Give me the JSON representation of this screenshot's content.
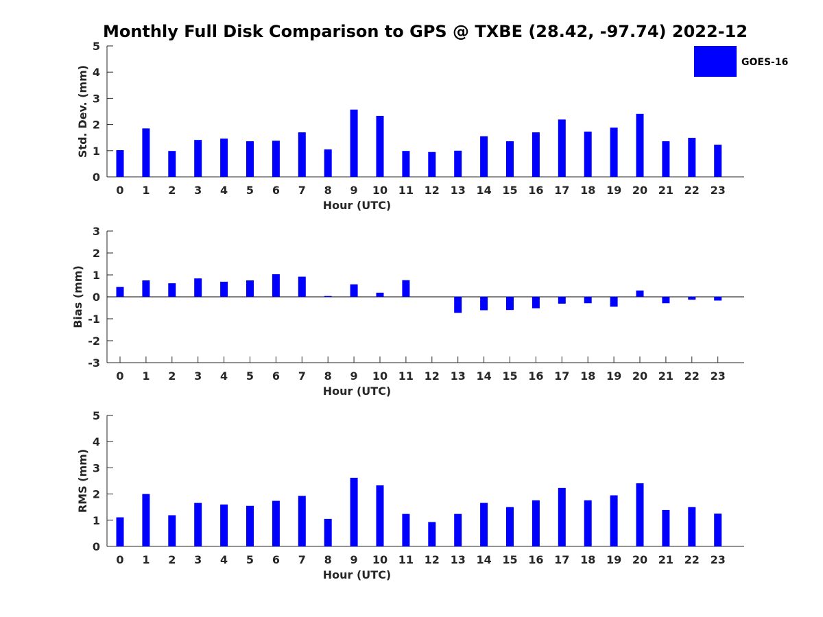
{
  "title": "Monthly Full Disk Comparison to GPS @ TXBE (28.42, -97.74) 2022-12",
  "legend": {
    "label": "GOES-16",
    "color": "#0000ff",
    "placement": "top-right"
  },
  "chart_data": [
    {
      "type": "bar",
      "name": "std",
      "xlabel": "Hour (UTC)",
      "ylabel": "Std. Dev. (mm)",
      "ylim": [
        0,
        5
      ],
      "yticks": [
        0,
        1,
        2,
        3,
        4,
        5
      ],
      "categories": [
        "0",
        "1",
        "2",
        "3",
        "4",
        "5",
        "6",
        "7",
        "8",
        "9",
        "10",
        "11",
        "12",
        "13",
        "14",
        "15",
        "16",
        "17",
        "18",
        "19",
        "20",
        "21",
        "22",
        "23"
      ],
      "series": [
        {
          "name": "GOES-16",
          "color": "#0000ff",
          "values": [
            1.02,
            1.85,
            0.99,
            1.41,
            1.46,
            1.36,
            1.38,
            1.7,
            1.05,
            2.57,
            2.33,
            0.99,
            0.95,
            1.0,
            1.55,
            1.36,
            1.7,
            2.19,
            1.73,
            1.88,
            2.41,
            1.36,
            1.49,
            1.23
          ]
        }
      ]
    },
    {
      "type": "bar",
      "name": "bias",
      "xlabel": "Hour (UTC)",
      "ylabel": "Bias (mm)",
      "ylim": [
        -3,
        3
      ],
      "yticks": [
        -3,
        -2,
        -1,
        0,
        1,
        2,
        3
      ],
      "categories": [
        "0",
        "1",
        "2",
        "3",
        "4",
        "5",
        "6",
        "7",
        "8",
        "9",
        "10",
        "11",
        "12",
        "13",
        "14",
        "15",
        "16",
        "17",
        "18",
        "19",
        "20",
        "21",
        "22",
        "23"
      ],
      "series": [
        {
          "name": "GOES-16",
          "color": "#0000ff",
          "values": [
            0.45,
            0.75,
            0.62,
            0.84,
            0.69,
            0.75,
            1.03,
            0.92,
            0.04,
            0.57,
            0.19,
            0.76,
            0.0,
            -0.73,
            -0.61,
            -0.6,
            -0.52,
            -0.31,
            -0.29,
            -0.45,
            0.29,
            -0.29,
            -0.13,
            -0.17
          ]
        }
      ]
    },
    {
      "type": "bar",
      "name": "rms",
      "xlabel": "Hour (UTC)",
      "ylabel": "RMS (mm)",
      "ylim": [
        0,
        5
      ],
      "yticks": [
        0,
        1,
        2,
        3,
        4,
        5
      ],
      "categories": [
        "0",
        "1",
        "2",
        "3",
        "4",
        "5",
        "6",
        "7",
        "8",
        "9",
        "10",
        "11",
        "12",
        "13",
        "14",
        "15",
        "16",
        "17",
        "18",
        "19",
        "20",
        "21",
        "22",
        "23"
      ],
      "series": [
        {
          "name": "GOES-16",
          "color": "#0000ff",
          "values": [
            1.11,
            2.0,
            1.19,
            1.66,
            1.6,
            1.55,
            1.74,
            1.93,
            1.05,
            2.62,
            2.33,
            1.24,
            0.93,
            1.24,
            1.66,
            1.5,
            1.76,
            2.23,
            1.76,
            1.95,
            2.41,
            1.39,
            1.5,
            1.25
          ]
        }
      ]
    }
  ]
}
